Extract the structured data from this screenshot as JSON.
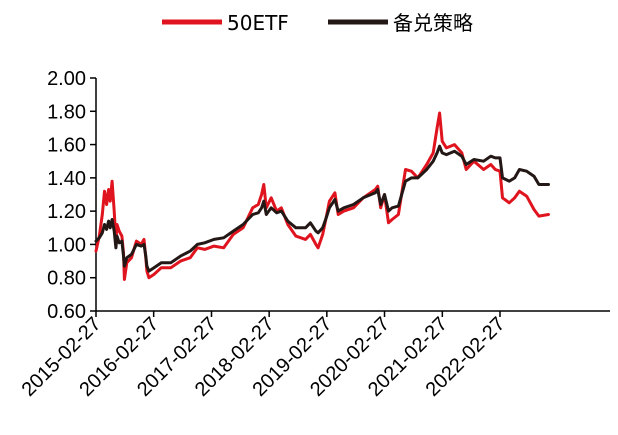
{
  "chart_data": {
    "type": "line",
    "title": "",
    "xlabel": "",
    "ylabel": "",
    "ylim": [
      0.6,
      2.0
    ],
    "yticks": [
      "0.60",
      "0.80",
      "1.00",
      "1.20",
      "1.40",
      "1.60",
      "1.80",
      "2.00"
    ],
    "xticks": [
      "2015-02-27",
      "2016-02-27",
      "2017-02-27",
      "2018-02-27",
      "2019-02-27",
      "2020-02-27",
      "2021-02-27",
      "2022-02-27"
    ],
    "xlim": [
      "2015-02-27",
      "2022-12-31"
    ],
    "legend_position": "top-center",
    "grid": false,
    "series": [
      {
        "name": "50ETF",
        "color": "#e0141e",
        "points": [
          [
            "2015-02-27",
            0.96
          ],
          [
            "2015-03-20",
            1.05
          ],
          [
            "2015-04-08",
            1.18
          ],
          [
            "2015-04-22",
            1.32
          ],
          [
            "2015-05-05",
            1.24
          ],
          [
            "2015-05-18",
            1.33
          ],
          [
            "2015-05-28",
            1.26
          ],
          [
            "2015-06-09",
            1.38
          ],
          [
            "2015-06-22",
            1.2
          ],
          [
            "2015-07-03",
            1.02
          ],
          [
            "2015-07-10",
            1.12
          ],
          [
            "2015-07-24",
            1.08
          ],
          [
            "2015-08-10",
            1.05
          ],
          [
            "2015-08-20",
            0.95
          ],
          [
            "2015-08-26",
            0.79
          ],
          [
            "2015-09-10",
            0.89
          ],
          [
            "2015-10-10",
            0.92
          ],
          [
            "2015-11-10",
            1.02
          ],
          [
            "2015-12-10",
            1.0
          ],
          [
            "2015-12-28",
            1.03
          ],
          [
            "2016-01-08",
            0.92
          ],
          [
            "2016-01-15",
            0.84
          ],
          [
            "2016-01-28",
            0.8
          ],
          [
            "2016-02-29",
            0.82
          ],
          [
            "2016-04-15",
            0.86
          ],
          [
            "2016-06-15",
            0.86
          ],
          [
            "2016-08-15",
            0.9
          ],
          [
            "2016-10-15",
            0.92
          ],
          [
            "2016-11-30",
            0.98
          ],
          [
            "2017-01-15",
            0.97
          ],
          [
            "2017-03-15",
            0.99
          ],
          [
            "2017-05-15",
            0.98
          ],
          [
            "2017-07-15",
            1.06
          ],
          [
            "2017-09-15",
            1.1
          ],
          [
            "2017-11-15",
            1.22
          ],
          [
            "2017-12-20",
            1.24
          ],
          [
            "2018-01-10",
            1.3
          ],
          [
            "2018-01-24",
            1.36
          ],
          [
            "2018-02-09",
            1.22
          ],
          [
            "2018-03-12",
            1.28
          ],
          [
            "2018-04-15",
            1.2
          ],
          [
            "2018-05-15",
            1.22
          ],
          [
            "2018-06-25",
            1.12
          ],
          [
            "2018-08-15",
            1.05
          ],
          [
            "2018-10-15",
            1.03
          ],
          [
            "2018-11-15",
            1.06
          ],
          [
            "2018-12-20",
            1.0
          ],
          [
            "2019-01-03",
            0.98
          ],
          [
            "2019-02-01",
            1.06
          ],
          [
            "2019-02-27",
            1.18
          ],
          [
            "2019-03-15",
            1.26
          ],
          [
            "2019-04-19",
            1.31
          ],
          [
            "2019-05-10",
            1.18
          ],
          [
            "2019-06-15",
            1.2
          ],
          [
            "2019-08-15",
            1.22
          ],
          [
            "2019-10-15",
            1.28
          ],
          [
            "2019-12-31",
            1.33
          ],
          [
            "2020-01-15",
            1.35
          ],
          [
            "2020-02-03",
            1.22
          ],
          [
            "2020-02-27",
            1.3
          ],
          [
            "2020-03-23",
            1.13
          ],
          [
            "2020-04-15",
            1.15
          ],
          [
            "2020-05-25",
            1.18
          ],
          [
            "2020-07-09",
            1.45
          ],
          [
            "2020-08-15",
            1.44
          ],
          [
            "2020-09-25",
            1.4
          ],
          [
            "2020-11-20",
            1.48
          ],
          [
            "2020-12-31",
            1.55
          ],
          [
            "2021-01-25",
            1.7
          ],
          [
            "2021-02-10",
            1.79
          ],
          [
            "2021-02-26",
            1.62
          ],
          [
            "2021-03-25",
            1.58
          ],
          [
            "2021-05-15",
            1.6
          ],
          [
            "2021-06-30",
            1.55
          ],
          [
            "2021-07-28",
            1.45
          ],
          [
            "2021-09-15",
            1.5
          ],
          [
            "2021-11-15",
            1.45
          ],
          [
            "2021-12-31",
            1.48
          ],
          [
            "2022-01-28",
            1.45
          ],
          [
            "2022-02-27",
            1.44
          ],
          [
            "2022-03-15",
            1.28
          ],
          [
            "2022-04-26",
            1.25
          ],
          [
            "2022-05-31",
            1.28
          ],
          [
            "2022-06-30",
            1.32
          ],
          [
            "2022-08-15",
            1.29
          ],
          [
            "2022-09-30",
            1.21
          ],
          [
            "2022-10-31",
            1.17
          ],
          [
            "2022-12-31",
            1.18
          ]
        ]
      },
      {
        "name": "备兑策略",
        "color": "#231815",
        "points": [
          [
            "2015-02-27",
            1.02
          ],
          [
            "2015-03-20",
            1.04
          ],
          [
            "2015-04-08",
            1.07
          ],
          [
            "2015-04-22",
            1.12
          ],
          [
            "2015-05-05",
            1.09
          ],
          [
            "2015-05-18",
            1.14
          ],
          [
            "2015-05-28",
            1.1
          ],
          [
            "2015-06-09",
            1.15
          ],
          [
            "2015-06-22",
            1.08
          ],
          [
            "2015-07-03",
            0.98
          ],
          [
            "2015-07-10",
            1.05
          ],
          [
            "2015-07-24",
            1.01
          ],
          [
            "2015-08-10",
            1.02
          ],
          [
            "2015-08-20",
            0.93
          ],
          [
            "2015-08-26",
            0.87
          ],
          [
            "2015-09-10",
            0.92
          ],
          [
            "2015-10-10",
            0.94
          ],
          [
            "2015-11-10",
            1.0
          ],
          [
            "2015-12-10",
            0.99
          ],
          [
            "2015-12-28",
            1.0
          ],
          [
            "2016-01-08",
            0.93
          ],
          [
            "2016-01-15",
            0.87
          ],
          [
            "2016-01-28",
            0.84
          ],
          [
            "2016-02-29",
            0.86
          ],
          [
            "2016-04-15",
            0.89
          ],
          [
            "2016-06-15",
            0.89
          ],
          [
            "2016-08-15",
            0.93
          ],
          [
            "2016-10-15",
            0.96
          ],
          [
            "2016-11-30",
            1.0
          ],
          [
            "2017-01-15",
            1.01
          ],
          [
            "2017-03-15",
            1.03
          ],
          [
            "2017-05-15",
            1.04
          ],
          [
            "2017-07-15",
            1.08
          ],
          [
            "2017-09-15",
            1.12
          ],
          [
            "2017-11-15",
            1.18
          ],
          [
            "2017-12-20",
            1.19
          ],
          [
            "2018-01-10",
            1.22
          ],
          [
            "2018-01-24",
            1.26
          ],
          [
            "2018-02-09",
            1.18
          ],
          [
            "2018-03-12",
            1.22
          ],
          [
            "2018-04-15",
            1.19
          ],
          [
            "2018-05-15",
            1.2
          ],
          [
            "2018-06-25",
            1.14
          ],
          [
            "2018-08-15",
            1.1
          ],
          [
            "2018-10-15",
            1.1
          ],
          [
            "2018-11-15",
            1.13
          ],
          [
            "2018-12-20",
            1.08
          ],
          [
            "2019-01-03",
            1.07
          ],
          [
            "2019-02-01",
            1.1
          ],
          [
            "2019-02-27",
            1.17
          ],
          [
            "2019-03-15",
            1.22
          ],
          [
            "2019-04-19",
            1.27
          ],
          [
            "2019-05-10",
            1.2
          ],
          [
            "2019-06-15",
            1.22
          ],
          [
            "2019-08-15",
            1.24
          ],
          [
            "2019-10-15",
            1.28
          ],
          [
            "2019-12-31",
            1.31
          ],
          [
            "2020-01-15",
            1.33
          ],
          [
            "2020-02-03",
            1.24
          ],
          [
            "2020-02-27",
            1.3
          ],
          [
            "2020-03-23",
            1.2
          ],
          [
            "2020-04-15",
            1.22
          ],
          [
            "2020-05-25",
            1.23
          ],
          [
            "2020-07-09",
            1.38
          ],
          [
            "2020-08-15",
            1.4
          ],
          [
            "2020-09-25",
            1.4
          ],
          [
            "2020-11-20",
            1.45
          ],
          [
            "2020-12-31",
            1.5
          ],
          [
            "2021-01-25",
            1.55
          ],
          [
            "2021-02-10",
            1.59
          ],
          [
            "2021-02-26",
            1.55
          ],
          [
            "2021-03-25",
            1.54
          ],
          [
            "2021-05-15",
            1.56
          ],
          [
            "2021-06-30",
            1.53
          ],
          [
            "2021-07-28",
            1.48
          ],
          [
            "2021-09-15",
            1.51
          ],
          [
            "2021-11-15",
            1.5
          ],
          [
            "2021-12-31",
            1.53
          ],
          [
            "2022-01-28",
            1.52
          ],
          [
            "2022-02-27",
            1.52
          ],
          [
            "2022-03-15",
            1.4
          ],
          [
            "2022-04-26",
            1.38
          ],
          [
            "2022-05-31",
            1.4
          ],
          [
            "2022-06-30",
            1.45
          ],
          [
            "2022-08-15",
            1.44
          ],
          [
            "2022-09-30",
            1.41
          ],
          [
            "2022-10-31",
            1.36
          ],
          [
            "2022-12-31",
            1.36
          ]
        ]
      }
    ]
  }
}
